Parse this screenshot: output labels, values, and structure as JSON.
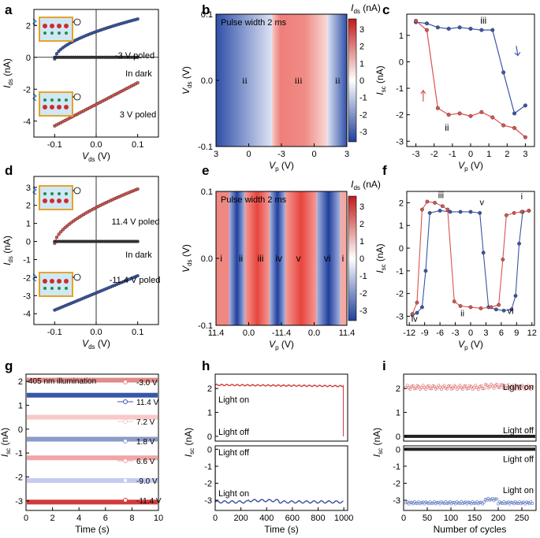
{
  "figure": {
    "panel_labels": [
      "a",
      "b",
      "c",
      "d",
      "e",
      "f",
      "g",
      "h",
      "i"
    ]
  },
  "chart_data": [
    {
      "id": "a",
      "type": "line",
      "xlabel_main": "V",
      "xlabel_sub": "ds",
      "xlabel_unit": " (V)",
      "ylabel_main": "I",
      "ylabel_sub": "ds",
      "ylabel_unit": " (nA)",
      "xlim": [
        -0.15,
        0.15
      ],
      "ylim": [
        -5,
        3
      ],
      "xticks": [
        -0.1,
        0.0,
        0.1
      ],
      "xtick_labels": [
        "-0.1",
        "0.0",
        "0.1"
      ],
      "yticks": [
        -4,
        -2,
        0,
        2
      ],
      "ytick_labels": [
        "-4",
        "-2",
        "0",
        "2"
      ],
      "series": [
        {
          "name": "-3 V poled",
          "color": "#3a56a8",
          "shape": "curve",
          "from": -0.1,
          "to": 0.1,
          "y0": -0.1,
          "y1": 2.4
        },
        {
          "name": "In dark",
          "color": "#333333",
          "shape": "flat",
          "from": -0.1,
          "to": 0.1,
          "y0": 0.0,
          "y1": 0.0
        },
        {
          "name": "3 V poled",
          "color": "#d9534f",
          "shape": "line",
          "from": -0.1,
          "to": 0.1,
          "y0": -4.3,
          "y1": -1.6
        }
      ],
      "annotations": [
        "-3 V poled",
        "In dark",
        "3 V poled"
      ]
    },
    {
      "id": "b",
      "type": "heatmap",
      "xlabel_main": "V",
      "xlabel_sub": "p",
      "xlabel_unit": " (V)",
      "ylabel_main": "V",
      "ylabel_sub": "ds",
      "ylabel_unit": " (V)",
      "xtick_labels": [
        "3",
        "0",
        "-3",
        "0",
        "3"
      ],
      "ylim": [
        -0.1,
        0.1
      ],
      "yticks": [
        -0.1,
        0.0,
        0.1
      ],
      "ytick_labels": [
        "-0.1",
        "0.0",
        "0.1"
      ],
      "title": "Pulse width 2 ms",
      "colorbar_label_main": "I",
      "colorbar_label_sub": "ds",
      "colorbar_label_unit": " (nA)",
      "colorbar_range": [
        -3.6,
        3.6
      ],
      "colorbar_ticks": [
        "3",
        "2",
        "1",
        "0",
        "-1",
        "-2",
        "-3"
      ],
      "regions": [
        "ii",
        "iii",
        "ii"
      ]
    },
    {
      "id": "c",
      "type": "line",
      "xlabel_main": "V",
      "xlabel_sub": "p",
      "xlabel_unit": " (V)",
      "ylabel_main": "I",
      "ylabel_sub": "sc",
      "ylabel_unit": " (nA)",
      "xlim": [
        -3.5,
        3.5
      ],
      "ylim": [
        -3.2,
        1.8
      ],
      "xticks": [
        -3,
        -2,
        -1,
        0,
        1,
        2,
        3
      ],
      "xtick_labels": [
        "-3",
        "-2",
        "-1",
        "0",
        "1",
        "2",
        "3"
      ],
      "yticks": [
        -3,
        -2,
        -1,
        0,
        1
      ],
      "ytick_labels": [
        "-3",
        "-2",
        "-1",
        "0",
        "1"
      ],
      "series": [
        {
          "name": "iii",
          "color": "#3a56a8",
          "x": [
            -3,
            -2.4,
            -1.8,
            -1.2,
            -0.6,
            0,
            0.6,
            1.2,
            1.8,
            2.4,
            3
          ],
          "y": [
            1.5,
            1.45,
            1.3,
            1.25,
            1.3,
            1.25,
            1.2,
            1.2,
            -0.4,
            -1.95,
            -1.65
          ]
        },
        {
          "name": "ii",
          "color": "#d9534f",
          "x": [
            3,
            2.4,
            1.8,
            1.2,
            0.6,
            0,
            -0.6,
            -1.2,
            -1.8,
            -2.4,
            -3
          ],
          "y": [
            -2.85,
            -2.5,
            -2.4,
            -2.1,
            -1.9,
            -2.05,
            -1.95,
            -2.0,
            -1.75,
            1.2,
            1.55
          ]
        }
      ],
      "annotations": [
        "iii",
        "ii"
      ]
    },
    {
      "id": "d",
      "type": "line",
      "xlabel_main": "V",
      "xlabel_sub": "ds",
      "xlabel_unit": " (V)",
      "ylabel_main": "I",
      "ylabel_sub": "ds",
      "ylabel_unit": " (nA)",
      "xlim": [
        -0.15,
        0.15
      ],
      "ylim": [
        -4.6,
        3.6
      ],
      "xticks": [
        -0.1,
        0.0,
        0.1
      ],
      "xtick_labels": [
        "-0.1",
        "0.0",
        "0.1"
      ],
      "yticks": [
        -4,
        -3,
        -2,
        -1,
        0,
        1,
        2,
        3
      ],
      "ytick_labels": [
        "-4",
        "-3",
        "-2",
        "-1",
        "0",
        "1",
        "2",
        "3"
      ],
      "series": [
        {
          "name": "11.4 V poled",
          "color": "#d9534f",
          "shape": "curve",
          "from": -0.1,
          "to": 0.1,
          "y0": -0.1,
          "y1": 2.9
        },
        {
          "name": "In dark",
          "color": "#333333",
          "shape": "flat",
          "from": -0.1,
          "to": 0.1,
          "y0": 0.0,
          "y1": 0.0
        },
        {
          "name": "-11.4 V poled",
          "color": "#3a56a8",
          "shape": "line",
          "from": -0.1,
          "to": 0.1,
          "y0": -3.8,
          "y1": -1.9
        }
      ],
      "annotations": [
        "11.4 V poled",
        "In dark",
        "-11.4 V poled"
      ]
    },
    {
      "id": "e",
      "type": "heatmap",
      "xlabel_main": "V",
      "xlabel_sub": "p",
      "xlabel_unit": " (V)",
      "ylabel_main": "V",
      "ylabel_sub": "ds",
      "ylabel_unit": " (V)",
      "xtick_labels": [
        "11.4",
        "0.0",
        "-11.4",
        "0.0",
        "11.4"
      ],
      "ylim": [
        -0.1,
        0.1
      ],
      "yticks": [
        -0.1,
        0.0,
        0.1
      ],
      "ytick_labels": [
        "-0.1",
        "0.0",
        "0.1"
      ],
      "title": "Pulse width 2 ms",
      "colorbar_label_main": "I",
      "colorbar_label_sub": "ds",
      "colorbar_label_unit": " (nA)",
      "colorbar_range": [
        -3.6,
        3.6
      ],
      "colorbar_ticks": [
        "3",
        "2",
        "1",
        "0",
        "-1",
        "-2",
        "-3"
      ],
      "regions": [
        "i",
        "ii",
        "iii",
        "iv",
        "v",
        "vi",
        "i"
      ]
    },
    {
      "id": "f",
      "type": "line",
      "xlabel_main": "V",
      "xlabel_sub": "p",
      "xlabel_unit": " (V)",
      "ylabel_main": "I",
      "ylabel_sub": "sc",
      "ylabel_unit": " (nA)",
      "xlim": [
        -12.5,
        12.5
      ],
      "ylim": [
        -3.4,
        2.5
      ],
      "xticks": [
        -12,
        -9,
        -6,
        -3,
        0,
        3,
        6,
        9,
        12
      ],
      "xtick_labels": [
        "-12",
        "-9",
        "-6",
        "-3",
        "0",
        "3",
        "6",
        "9",
        "12"
      ],
      "yticks": [
        -3,
        -2,
        -1,
        0,
        1,
        2
      ],
      "ytick_labels": [
        "-3",
        "-2",
        "-1",
        "0",
        "1",
        "2"
      ],
      "series": [
        {
          "name": "blue",
          "color": "#3a56a8",
          "x": [
            -11.4,
            -10.5,
            -9.5,
            -8.8,
            -8,
            -6,
            -4,
            -2,
            0,
            1.8,
            2.5,
            3.5,
            5,
            6.5,
            8,
            8.8,
            9.5,
            10.2,
            11.4
          ],
          "y": [
            -2.95,
            -2.85,
            -2.6,
            -1.0,
            1.55,
            1.65,
            1.6,
            1.6,
            1.6,
            1.55,
            -0.2,
            -2.6,
            -2.7,
            -2.75,
            -2.7,
            -2.1,
            0.2,
            1.6,
            1.65
          ]
        },
        {
          "name": "red",
          "color": "#d9534f",
          "x": [
            11.4,
            10,
            8.5,
            7,
            6.3,
            5.5,
            4,
            2,
            0,
            -2,
            -3.2,
            -4.5,
            -5.5,
            -7,
            -8.5,
            -9.5,
            -10.5,
            -11.4
          ],
          "y": [
            1.65,
            1.6,
            1.55,
            1.45,
            -0.5,
            -2.5,
            -2.6,
            -2.65,
            -2.6,
            -2.55,
            -2.35,
            1.7,
            1.85,
            2.0,
            2.05,
            1.7,
            -2.4,
            -2.9
          ]
        }
      ],
      "annotations": [
        "iii",
        "v",
        "i",
        "iv",
        "ii",
        "vi"
      ]
    },
    {
      "id": "g",
      "type": "line",
      "xlabel": "Time (s)",
      "ylabel_main": "I",
      "ylabel_sub": "sc",
      "ylabel_unit": " (nA)",
      "xlim": [
        0,
        10
      ],
      "ylim": [
        -3.4,
        2.3
      ],
      "xticks": [
        0,
        2,
        4,
        6,
        8,
        10
      ],
      "xtick_labels": [
        "0",
        "2",
        "4",
        "6",
        "8",
        "10"
      ],
      "yticks": [
        -3,
        -2,
        -1,
        0,
        1,
        2
      ],
      "ytick_labels": [
        "-3",
        "-2",
        "-1",
        "0",
        "1",
        "2"
      ],
      "title": "405 nm illumination",
      "series": [
        {
          "name": "-3.0 V",
          "color": "#e08a8a",
          "level": 2.05
        },
        {
          "name": "11.4 V",
          "color": "#3a56a8",
          "level": 1.42
        },
        {
          "name": "7.2 V",
          "color": "#f7c9c9",
          "level": 0.5
        },
        {
          "name": "1.8 V",
          "color": "#8a9ac9",
          "level": -0.42
        },
        {
          "name": "6.6 V",
          "color": "#f0a6a6",
          "level": -1.2
        },
        {
          "name": "-9.0 V",
          "color": "#c5cbef",
          "level": -2.15
        },
        {
          "name": "-11.4 V",
          "color": "#d23a3a",
          "level": -3.05
        }
      ]
    },
    {
      "id": "h",
      "type": "line",
      "xlabel": "Time (s)",
      "ylabel_main": "I",
      "ylabel_sub": "sc",
      "ylabel_unit": " (nA)",
      "xlim": [
        0,
        1030
      ],
      "xticks": [
        0,
        200,
        400,
        600,
        800,
        1000
      ],
      "xtick_labels": [
        "0",
        "200",
        "400",
        "600",
        "800",
        "1000"
      ],
      "top": {
        "ylim": [
          -0.2,
          2.6
        ],
        "yticks": [
          0,
          1,
          2
        ],
        "ytick_labels": [
          "0",
          "1",
          "2"
        ],
        "level": 2.15,
        "color": "#d23a3a"
      },
      "bottom": {
        "ylim": [
          -3.6,
          0.2
        ],
        "yticks": [
          -3,
          -2,
          -1,
          0
        ],
        "ytick_labels": [
          "-3",
          "-2",
          "-1",
          "0"
        ],
        "level": -3.1,
        "color": "#3a4fa0"
      },
      "annotations": [
        "Light on",
        "Light off",
        "Light off",
        "Light on"
      ]
    },
    {
      "id": "i",
      "type": "scatter",
      "xlabel": "Number of cycles",
      "ylabel_main": "I",
      "ylabel_sub": "sc",
      "ylabel_unit": " (nA)",
      "xlim": [
        0,
        280
      ],
      "xticks": [
        0,
        50,
        100,
        150,
        200,
        250
      ],
      "xtick_labels": [
        "0",
        "50",
        "100",
        "150",
        "200",
        "250"
      ],
      "top": {
        "ylim": [
          -0.2,
          2.6
        ],
        "yticks": [
          0,
          1,
          2
        ],
        "ytick_labels": [
          "0",
          "1",
          "2"
        ],
        "level": 2.05,
        "color": "#e07a7a"
      },
      "bottom": {
        "ylim": [
          -3.6,
          0.2
        ],
        "yticks": [
          -3,
          -2,
          -1,
          0
        ],
        "ytick_labels": [
          "-3",
          "-2",
          "-1",
          "0"
        ],
        "level": -3.15,
        "color": "#6a7fc8"
      },
      "annotations": [
        "Light on",
        "Light off",
        "Light off",
        "Light on"
      ]
    }
  ]
}
